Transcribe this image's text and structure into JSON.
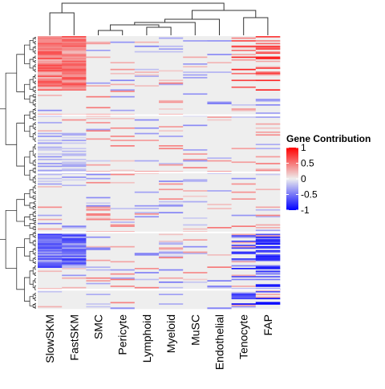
{
  "chart_data": {
    "type": "heatmap",
    "columns": [
      "SlowSKM",
      "FastSKM",
      "SMC",
      "Pericyte",
      "Lymphoid",
      "Myeloid",
      "MuSC",
      "Endothelial",
      "Tenocyte",
      "FAP"
    ],
    "value_range": [
      -1,
      1
    ],
    "colorscale": {
      "low": "#0000FF",
      "mid": "#EEEEEE",
      "high": "#FF0000"
    },
    "legend": {
      "title": "Gene Contribution",
      "ticks": [
        "1",
        "0.5",
        "0",
        "-0.5",
        "-1"
      ],
      "tick_values": [
        1,
        0.5,
        0,
        -0.5,
        -1
      ],
      "position": "right"
    },
    "row_dendrogram": true,
    "column_dendrogram": true,
    "row_count_estimate": 200,
    "row_group_splits_fraction": [
      0.29,
      0.5,
      0.72,
      0.93
    ],
    "grid": false
  }
}
